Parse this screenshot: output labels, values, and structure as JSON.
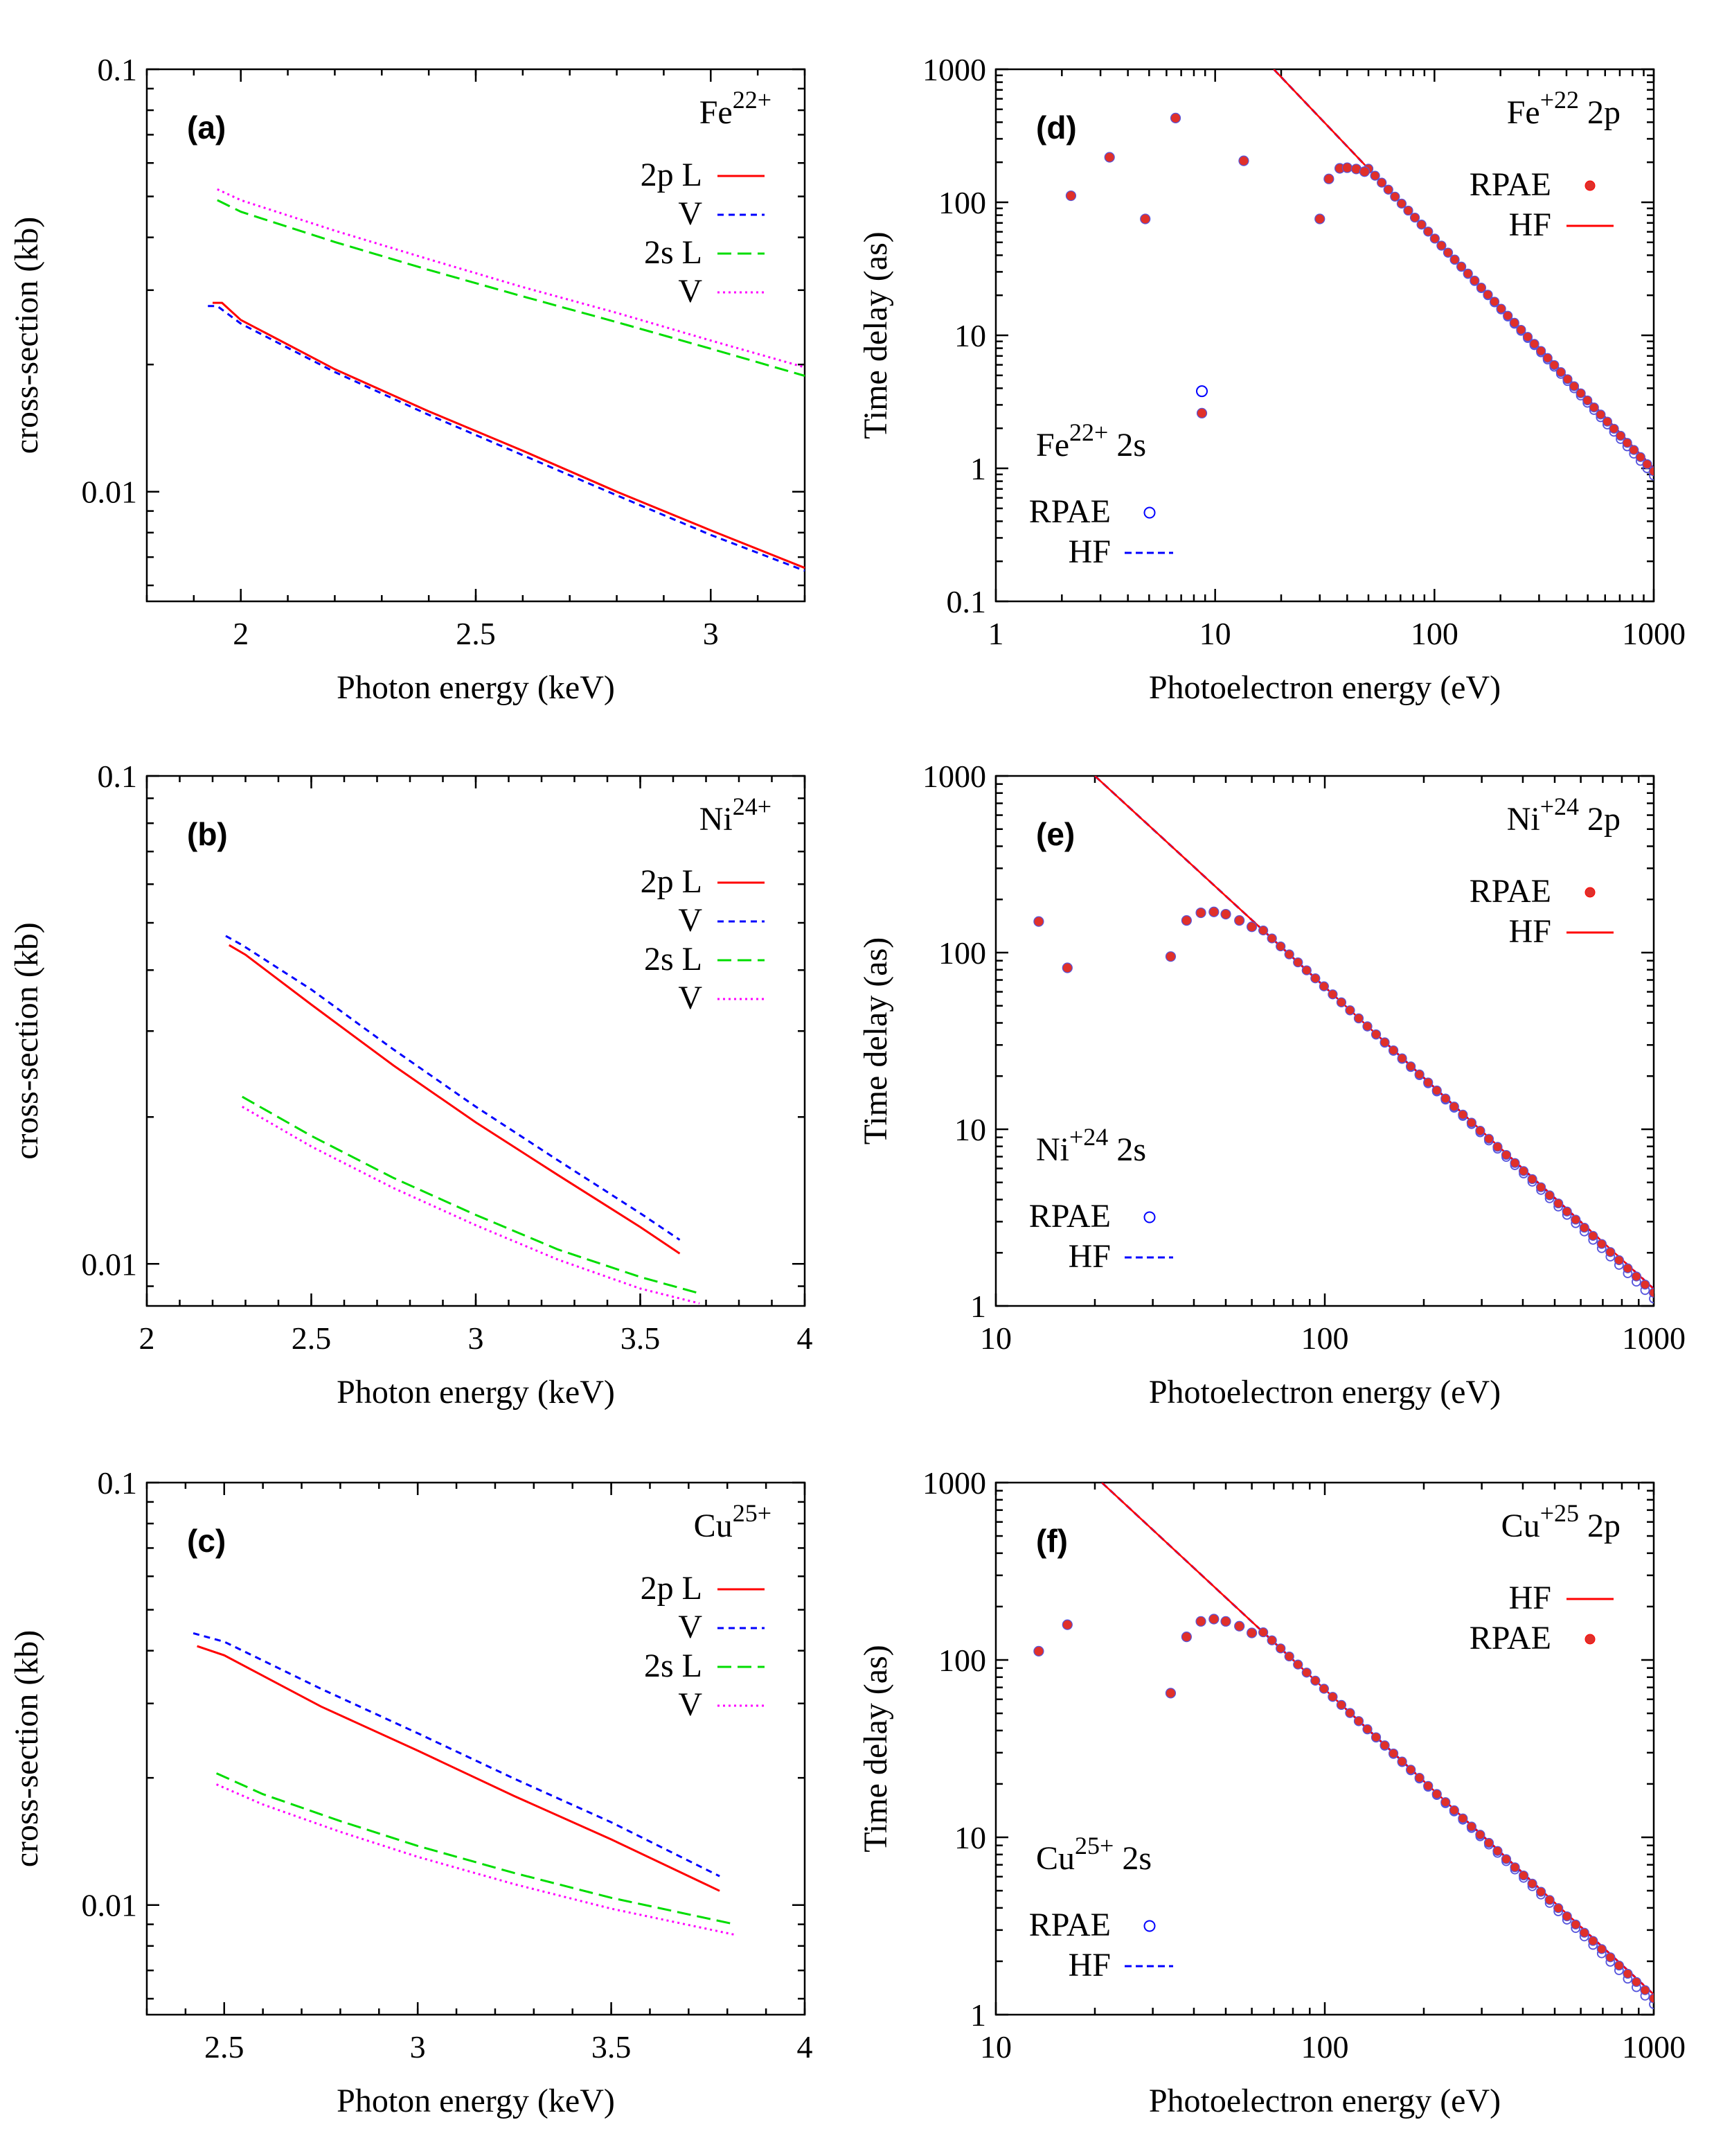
{
  "figure": {
    "colors": {
      "red": "#ff0000",
      "blue": "#0000ff",
      "green": "#00dd00",
      "magenta": "#ff00ff",
      "dot_fill": "#e0302a",
      "dot_edge": "#5555dd"
    }
  },
  "chart_data": [
    {
      "id": "a",
      "type": "line",
      "panel_label": "(a)",
      "ion_base": "Fe",
      "ion_charge": "22+",
      "xlabel": "Photon energy (keV)",
      "ylabel": "cross-section (kb)",
      "xscale": "linear",
      "yscale": "log",
      "xlim": [
        1.8,
        3.2
      ],
      "ylim": [
        0.0055,
        0.1
      ],
      "xticks": [
        2,
        2.5,
        3
      ],
      "xtick_labels": [
        "2",
        "2.5",
        "3"
      ],
      "yticks": [
        0.01,
        0.1
      ],
      "ytick_labels": [
        "0.01",
        "0.1"
      ],
      "series": [
        {
          "name": "2p L",
          "label": "2p L",
          "color": "#ff0000",
          "dash": "solid",
          "x": [
            1.94,
            1.96,
            2.0,
            2.2,
            2.4,
            2.6,
            2.8,
            3.0,
            3.2
          ],
          "y": [
            0.028,
            0.028,
            0.0255,
            0.0195,
            0.0155,
            0.0125,
            0.01,
            0.0081,
            0.0066
          ]
        },
        {
          "name": "2p V",
          "label": "V",
          "color": "#0000ff",
          "dash": "short",
          "x": [
            1.93,
            1.95,
            2.0,
            2.2,
            2.4,
            2.6,
            2.8,
            3.0,
            3.2
          ],
          "y": [
            0.0275,
            0.0275,
            0.025,
            0.0192,
            0.0152,
            0.0122,
            0.0098,
            0.0079,
            0.0065
          ]
        },
        {
          "name": "2s L",
          "label": "2s L",
          "color": "#00dd00",
          "dash": "long",
          "x": [
            1.95,
            2.0,
            2.2,
            2.4,
            2.6,
            2.8,
            3.0,
            3.2
          ],
          "y": [
            0.049,
            0.046,
            0.039,
            0.0335,
            0.029,
            0.0252,
            0.0218,
            0.0188
          ]
        },
        {
          "name": "2s V",
          "label": "V",
          "color": "#ff00ff",
          "dash": "dot",
          "x": [
            1.95,
            2.0,
            2.2,
            2.4,
            2.6,
            2.8,
            3.0,
            3.2
          ],
          "y": [
            0.052,
            0.049,
            0.0415,
            0.0355,
            0.0305,
            0.0265,
            0.0228,
            0.0197
          ]
        }
      ]
    },
    {
      "id": "b",
      "type": "line",
      "panel_label": "(b)",
      "ion_base": "Ni",
      "ion_charge": "24+",
      "xlabel": "Photon energy (keV)",
      "ylabel": "cross-section (kb)",
      "xscale": "linear",
      "yscale": "log",
      "xlim": [
        2,
        4
      ],
      "ylim": [
        0.0082,
        0.1
      ],
      "xticks": [
        2,
        2.5,
        3,
        3.5,
        4
      ],
      "xtick_labels": [
        "2",
        "2.5",
        "3",
        "3.5",
        "4"
      ],
      "yticks": [
        0.01,
        0.1
      ],
      "ytick_labels": [
        "0.01",
        "0.1"
      ],
      "series": [
        {
          "name": "2p L",
          "label": "2p L",
          "color": "#ff0000",
          "dash": "solid",
          "x": [
            2.25,
            2.3,
            2.5,
            2.75,
            3.0,
            3.25,
            3.5,
            3.62
          ],
          "y": [
            0.045,
            0.043,
            0.034,
            0.0255,
            0.0195,
            0.0152,
            0.0119,
            0.0105
          ]
        },
        {
          "name": "2p V",
          "label": "V",
          "color": "#0000ff",
          "dash": "short",
          "x": [
            2.24,
            2.29,
            2.5,
            2.75,
            3.0,
            3.25,
            3.5,
            3.62
          ],
          "y": [
            0.047,
            0.045,
            0.0365,
            0.0275,
            0.021,
            0.0163,
            0.0127,
            0.0112
          ]
        },
        {
          "name": "2s L",
          "label": "2s L",
          "color": "#00dd00",
          "dash": "long",
          "x": [
            2.29,
            2.5,
            2.75,
            3.0,
            3.25,
            3.5,
            3.68
          ],
          "y": [
            0.022,
            0.0183,
            0.015,
            0.0126,
            0.0107,
            0.0094,
            0.0087
          ]
        },
        {
          "name": "2s V",
          "label": "V",
          "color": "#ff00ff",
          "dash": "dot",
          "x": [
            2.29,
            2.5,
            2.75,
            3.0,
            3.25,
            3.5,
            3.68
          ],
          "y": [
            0.021,
            0.0174,
            0.0143,
            0.012,
            0.0102,
            0.0089,
            0.0083
          ]
        }
      ]
    },
    {
      "id": "c",
      "type": "line",
      "panel_label": "(c)",
      "ion_base": "Cu",
      "ion_charge": "25+",
      "xlabel": "Photon energy (keV)",
      "ylabel": "cross-section (kb)",
      "xscale": "linear",
      "yscale": "log",
      "xlim": [
        2.3,
        4
      ],
      "ylim": [
        0.0055,
        0.1
      ],
      "xticks": [
        2.5,
        3,
        3.5,
        4
      ],
      "xtick_labels": [
        "2.5",
        "3",
        "3.5",
        "4"
      ],
      "yticks": [
        0.01,
        0.1
      ],
      "ytick_labels": [
        "0.01",
        "0.1"
      ],
      "series": [
        {
          "name": "2p L",
          "label": "2p L",
          "color": "#ff0000",
          "dash": "solid",
          "x": [
            2.43,
            2.5,
            2.75,
            3.0,
            3.25,
            3.5,
            3.78
          ],
          "y": [
            0.041,
            0.039,
            0.0295,
            0.0232,
            0.0181,
            0.0143,
            0.0108
          ]
        },
        {
          "name": "2p V",
          "label": "V",
          "color": "#0000ff",
          "dash": "short",
          "x": [
            2.42,
            2.5,
            2.75,
            3.0,
            3.25,
            3.5,
            3.78
          ],
          "y": [
            0.044,
            0.042,
            0.0325,
            0.0255,
            0.0199,
            0.0157,
            0.0117
          ]
        },
        {
          "name": "2s L",
          "label": "2s L",
          "color": "#00dd00",
          "dash": "long",
          "x": [
            2.48,
            2.6,
            2.8,
            3.0,
            3.25,
            3.5,
            3.82
          ],
          "y": [
            0.0205,
            0.0183,
            0.0158,
            0.0138,
            0.0119,
            0.0104,
            0.009
          ]
        },
        {
          "name": "2s V",
          "label": "V",
          "color": "#ff00ff",
          "dash": "dot",
          "x": [
            2.48,
            2.6,
            2.8,
            3.0,
            3.25,
            3.5,
            3.82
          ],
          "y": [
            0.0193,
            0.0173,
            0.0149,
            0.013,
            0.0112,
            0.0098,
            0.0085
          ]
        }
      ]
    },
    {
      "id": "d",
      "type": "scatter",
      "panel_label": "(d)",
      "xlabel": "Photoelectron energy  (eV)",
      "ylabel": "Time delay (as)",
      "xscale": "log",
      "yscale": "log",
      "xlim": [
        1,
        1000
      ],
      "ylim": [
        0.1,
        1000
      ],
      "xticks": [
        1,
        10,
        100,
        1000
      ],
      "xtick_labels": [
        "1",
        "10",
        "100",
        "1000"
      ],
      "yticks": [
        0.1,
        1,
        10,
        100,
        1000
      ],
      "ytick_labels": [
        "0.1",
        "1",
        "10",
        "100",
        "1000"
      ],
      "legend_2p": {
        "ion": "Fe",
        "charge": "+22",
        "shell": "2p",
        "entries": [
          {
            "label": "RPAE",
            "marker": "dot"
          },
          {
            "label": "HF",
            "marker": "solid"
          }
        ]
      },
      "legend_2s": {
        "ion": "Fe",
        "charge": "22+",
        "shell": "2s",
        "entries": [
          {
            "label": "RPAE",
            "marker": "circle"
          },
          {
            "label": "HF",
            "marker": "dash"
          }
        ]
      },
      "hf_line": {
        "x": [
          18.5,
          1000
        ],
        "y": [
          1000,
          1.0
        ]
      },
      "rpae_2p": {
        "x": [
          2.2,
          3.3,
          4.8,
          6.6,
          8.7,
          13.5,
          30,
          33,
          37,
          40,
          44,
          48
        ],
        "y": [
          112,
          218,
          75,
          430,
          2.6,
          205,
          75,
          150,
          180,
          182,
          178,
          170
        ]
      },
      "rpae_2s": {
        "x": [
          8.7
        ],
        "y": [
          3.8
        ]
      },
      "dense_points": {
        "x_start": 50,
        "x_end": 1000,
        "count": 44
      }
    },
    {
      "id": "e",
      "type": "scatter",
      "panel_label": "(e)",
      "xlabel": "Photoelectron energy  (eV)",
      "ylabel": "Time delay (as)",
      "xscale": "log",
      "yscale": "log",
      "xlim": [
        10,
        1000
      ],
      "ylim": [
        1,
        1000
      ],
      "xticks": [
        10,
        100,
        1000
      ],
      "xtick_labels": [
        "10",
        "100",
        "1000"
      ],
      "yticks": [
        1,
        10,
        100,
        1000
      ],
      "ytick_labels": [
        "1",
        "10",
        "100",
        "1000"
      ],
      "legend_2p": {
        "ion": "Ni",
        "charge": "+24",
        "shell": "2p",
        "entries": [
          {
            "label": "RPAE",
            "marker": "dot"
          },
          {
            "label": "HF",
            "marker": "solid"
          }
        ]
      },
      "legend_2s": {
        "ion": "Ni",
        "charge": "+24",
        "shell": "2s",
        "entries": [
          {
            "label": "RPAE",
            "marker": "circle"
          },
          {
            "label": "HF",
            "marker": "dash"
          }
        ]
      },
      "hf_line": {
        "x": [
          20,
          1000
        ],
        "y": [
          1000,
          1.25
        ]
      },
      "rpae_2p": {
        "x": [
          13.5,
          16.5,
          34,
          38,
          42,
          46,
          50,
          55,
          60
        ],
        "y": [
          150,
          82,
          95,
          152,
          168,
          170,
          165,
          152,
          140
        ]
      },
      "rpae_2s": {
        "x": [],
        "y": []
      },
      "dense_points": {
        "x_start": 65,
        "x_end": 1000,
        "count": 46
      }
    },
    {
      "id": "f",
      "type": "scatter",
      "panel_label": "(f)",
      "xlabel": "Photoelectron energy  (eV)",
      "ylabel": "Time delay (as)",
      "xscale": "log",
      "yscale": "log",
      "xlim": [
        10,
        1000
      ],
      "ylim": [
        1,
        1000
      ],
      "xticks": [
        10,
        100,
        1000
      ],
      "xtick_labels": [
        "10",
        "100",
        "1000"
      ],
      "yticks": [
        1,
        10,
        100,
        1000
      ],
      "ytick_labels": [
        "1",
        "10",
        "100",
        "1000"
      ],
      "legend_2p": {
        "ion": "Cu",
        "charge": "+25",
        "shell": "2p",
        "entries": [
          {
            "label": "HF",
            "marker": "solid"
          },
          {
            "label": "RPAE",
            "marker": "dot"
          }
        ]
      },
      "legend_2s": {
        "ion": "Cu",
        "charge": "25+",
        "shell": "2s",
        "entries": [
          {
            "label": "RPAE",
            "marker": "circle"
          },
          {
            "label": "HF",
            "marker": "dash"
          }
        ]
      },
      "hf_line": {
        "x": [
          21,
          1000
        ],
        "y": [
          1000,
          1.3
        ]
      },
      "rpae_2p": {
        "x": [
          13.5,
          16.5,
          34,
          38,
          42,
          46,
          50,
          55,
          60
        ],
        "y": [
          112,
          158,
          65,
          135,
          165,
          170,
          165,
          155,
          142
        ]
      },
      "rpae_2s": {
        "x": [],
        "y": []
      },
      "dense_points": {
        "x_start": 65,
        "x_end": 1000,
        "count": 46
      }
    }
  ]
}
